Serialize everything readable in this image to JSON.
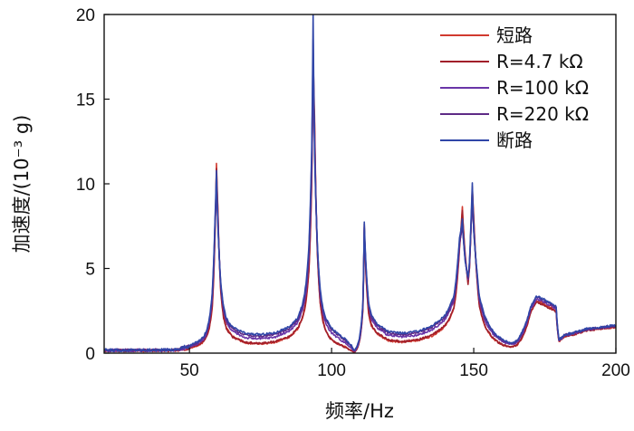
{
  "chart_data": {
    "type": "line",
    "title": "",
    "xlabel": "频率/Hz",
    "ylabel": "加速度/(10⁻³ g)",
    "xlim": [
      20,
      200
    ],
    "ylim": [
      0,
      20
    ],
    "xticks": [
      50,
      100,
      150,
      200
    ],
    "yticks": [
      0,
      5,
      10,
      15,
      20
    ],
    "grid": false,
    "legend_position": "top-right",
    "resonances": [
      {
        "f": 59.5,
        "w": 0.8,
        "amp": 10.5
      },
      {
        "f": 93.5,
        "w": 1.1,
        "amp": 18.0
      },
      {
        "f": 111.5,
        "w": 0.7,
        "amp": 6.8
      },
      {
        "f": 146.0,
        "w": 1.3,
        "amp": 7.0
      },
      {
        "f": 149.5,
        "w": 0.9,
        "amp": 8.0
      }
    ],
    "x": [
      20,
      25,
      30,
      35,
      40,
      45,
      50,
      52,
      54,
      55,
      56,
      57,
      58,
      59,
      59.5,
      60,
      61,
      62,
      63,
      65,
      70,
      75,
      80,
      85,
      88,
      90,
      91,
      92,
      93,
      93.5,
      94,
      95,
      96,
      97,
      98,
      100,
      103,
      105,
      107,
      108,
      109,
      110,
      111,
      111.5,
      112,
      113,
      114,
      116,
      120,
      125,
      130,
      135,
      140,
      143,
      144,
      145,
      146,
      147,
      148,
      148.5,
      149,
      149.5,
      150,
      151,
      152,
      154,
      157,
      160,
      163,
      165,
      168,
      170,
      172,
      174,
      176,
      178,
      179,
      180,
      182,
      185,
      190,
      195,
      200
    ],
    "series": [
      {
        "name": "短路",
        "color": "#d13a2f",
        "values": [
          0.15,
          0.15,
          0.15,
          0.15,
          0.16,
          0.17,
          0.3,
          0.4,
          0.55,
          0.7,
          0.95,
          1.5,
          2.7,
          7.0,
          11.2,
          8.5,
          3.8,
          2.2,
          1.5,
          1.0,
          0.6,
          0.55,
          0.65,
          0.95,
          1.4,
          2.2,
          3.0,
          4.8,
          10.0,
          17.5,
          14.0,
          6.0,
          3.0,
          1.9,
          1.35,
          0.8,
          0.5,
          0.35,
          0.15,
          0.05,
          0.3,
          0.9,
          2.5,
          7.5,
          5.0,
          2.4,
          1.6,
          1.15,
          0.75,
          0.65,
          0.75,
          1.0,
          1.6,
          2.6,
          3.9,
          6.2,
          8.6,
          5.8,
          4.2,
          5.0,
          7.2,
          9.8,
          8.0,
          4.8,
          2.8,
          1.6,
          0.85,
          0.5,
          0.35,
          0.45,
          1.3,
          2.4,
          3.1,
          3.0,
          2.8,
          2.6,
          2.5,
          0.7,
          1.0,
          1.1,
          1.35,
          1.45,
          1.55
        ]
      },
      {
        "name": "R=4.7 kΩ",
        "color": "#a11f2a",
        "values": [
          0.16,
          0.15,
          0.16,
          0.16,
          0.16,
          0.18,
          0.32,
          0.42,
          0.57,
          0.72,
          0.98,
          1.55,
          2.8,
          7.2,
          10.9,
          8.4,
          3.7,
          2.1,
          1.45,
          0.98,
          0.62,
          0.57,
          0.68,
          0.98,
          1.45,
          2.3,
          3.1,
          4.9,
          10.2,
          17.0,
          13.5,
          5.9,
          2.95,
          1.85,
          1.3,
          0.78,
          0.48,
          0.33,
          0.14,
          0.05,
          0.3,
          0.95,
          2.6,
          7.6,
          5.1,
          2.45,
          1.65,
          1.2,
          0.78,
          0.68,
          0.78,
          1.05,
          1.65,
          2.7,
          4.0,
          6.3,
          8.4,
          5.7,
          4.1,
          5.1,
          7.4,
          9.7,
          7.9,
          4.7,
          2.75,
          1.58,
          0.86,
          0.5,
          0.36,
          0.46,
          1.3,
          2.4,
          3.0,
          2.9,
          2.7,
          2.55,
          2.45,
          0.7,
          1.0,
          1.1,
          1.35,
          1.45,
          1.55
        ]
      },
      {
        "name": "R=100 kΩ",
        "color": "#6a35a8",
        "values": [
          0.17,
          0.16,
          0.16,
          0.17,
          0.17,
          0.19,
          0.38,
          0.5,
          0.68,
          0.85,
          1.15,
          1.8,
          3.2,
          7.6,
          10.0,
          8.0,
          4.0,
          2.5,
          1.8,
          1.3,
          0.9,
          0.85,
          0.95,
          1.3,
          1.8,
          2.7,
          3.6,
          5.6,
          11.0,
          16.5,
          13.0,
          6.2,
          3.4,
          2.3,
          1.75,
          1.2,
          0.82,
          0.6,
          0.3,
          0.1,
          0.35,
          1.0,
          2.8,
          7.4,
          5.3,
          2.8,
          2.0,
          1.5,
          1.05,
          0.95,
          1.05,
          1.35,
          2.0,
          3.1,
          4.4,
          6.4,
          7.7,
          5.6,
          4.3,
          5.2,
          7.3,
          9.0,
          7.5,
          4.9,
          3.1,
          1.9,
          1.1,
          0.7,
          0.5,
          0.6,
          1.5,
          2.6,
          3.2,
          3.1,
          2.9,
          2.7,
          2.6,
          0.75,
          1.05,
          1.15,
          1.4,
          1.5,
          1.6
        ]
      },
      {
        "name": "R=220 kΩ",
        "color": "#5e2a86",
        "values": [
          0.17,
          0.17,
          0.17,
          0.17,
          0.18,
          0.2,
          0.42,
          0.56,
          0.75,
          0.93,
          1.25,
          1.95,
          3.4,
          7.8,
          9.6,
          7.8,
          4.1,
          2.65,
          1.95,
          1.45,
          1.05,
          1.0,
          1.1,
          1.45,
          1.95,
          2.9,
          3.9,
          6.0,
          11.5,
          18.5,
          12.5,
          6.3,
          3.6,
          2.5,
          1.95,
          1.38,
          0.98,
          0.74,
          0.4,
          0.15,
          0.4,
          1.05,
          2.9,
          7.3,
          5.4,
          2.95,
          2.15,
          1.65,
          1.2,
          1.1,
          1.2,
          1.5,
          2.15,
          3.25,
          4.6,
          6.6,
          7.5,
          5.5,
          4.4,
          5.3,
          7.2,
          9.3,
          7.3,
          5.0,
          3.25,
          2.05,
          1.2,
          0.78,
          0.56,
          0.66,
          1.6,
          2.7,
          3.3,
          3.2,
          3.0,
          2.8,
          2.7,
          0.78,
          1.08,
          1.18,
          1.42,
          1.52,
          1.62
        ]
      },
      {
        "name": "断路",
        "color": "#3046a8",
        "values": [
          0.18,
          0.17,
          0.18,
          0.18,
          0.18,
          0.21,
          0.45,
          0.6,
          0.8,
          1.0,
          1.32,
          2.05,
          3.55,
          8.0,
          10.8,
          7.6,
          4.2,
          2.75,
          2.05,
          1.55,
          1.15,
          1.1,
          1.2,
          1.55,
          2.05,
          3.05,
          4.1,
          6.3,
          12.0,
          20.0,
          12.0,
          6.4,
          3.75,
          2.62,
          2.05,
          1.48,
          1.06,
          0.8,
          0.45,
          0.18,
          0.42,
          1.1,
          3.0,
          7.8,
          5.5,
          3.05,
          2.25,
          1.75,
          1.28,
          1.18,
          1.28,
          1.58,
          2.25,
          3.35,
          4.7,
          6.8,
          7.9,
          5.4,
          4.5,
          5.4,
          7.6,
          10.1,
          7.2,
          5.1,
          3.35,
          2.15,
          1.25,
          0.82,
          0.6,
          0.7,
          1.65,
          2.75,
          3.35,
          3.25,
          3.05,
          2.85,
          2.75,
          0.8,
          1.1,
          1.2,
          1.45,
          1.55,
          1.65
        ]
      }
    ]
  }
}
